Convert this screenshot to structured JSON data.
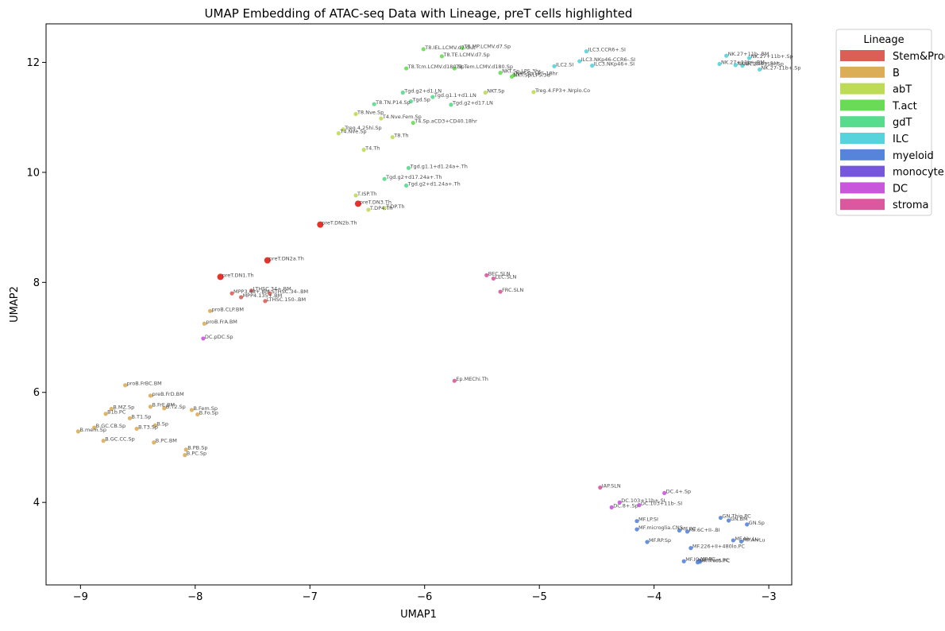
{
  "chart_data": {
    "type": "scatter",
    "title": "UMAP Embedding of ATAC-seq Data with Lineage, preT cells highlighted",
    "xlabel": "UMAP1",
    "ylabel": "UMAP2",
    "xlim": [
      -9.3,
      -2.8
    ],
    "ylim": [
      2.5,
      12.7
    ],
    "xticks": [
      -9,
      -8,
      -7,
      -6,
      -5,
      -4,
      -3
    ],
    "yticks": [
      4,
      6,
      8,
      10,
      12
    ],
    "tick_labels_x": [
      "−9",
      "−8",
      "−7",
      "−6",
      "−5",
      "−4",
      "−3"
    ],
    "tick_labels_y": [
      "4",
      "6",
      "8",
      "10",
      "12"
    ],
    "grid": false,
    "legend": {
      "title": "Lineage",
      "placement": "outside-right-top",
      "entries": [
        {
          "name": "Stem&Prog",
          "color": "#db5f57"
        },
        {
          "name": "B",
          "color": "#dbad57"
        },
        {
          "name": "abT",
          "color": "#bddb57"
        },
        {
          "name": "T.act",
          "color": "#6adb57"
        },
        {
          "name": "gdT",
          "color": "#57db8c"
        },
        {
          "name": "ILC",
          "color": "#57d3db"
        },
        {
          "name": "myeloid",
          "color": "#5784db"
        },
        {
          "name": "monocyte",
          "color": "#7657db"
        },
        {
          "name": "DC",
          "color": "#c957db"
        },
        {
          "name": "stroma",
          "color": "#db579e"
        }
      ]
    },
    "highlight_color": "#e8312b",
    "points": [
      {
        "x": -6.58,
        "y": 9.43,
        "label": "preT.DN3.Th",
        "lineage": "Stem&Prog",
        "highlight": true
      },
      {
        "x": -6.91,
        "y": 9.05,
        "label": "preT.DN2b.Th",
        "lineage": "Stem&Prog",
        "highlight": true
      },
      {
        "x": -7.37,
        "y": 8.4,
        "label": "preT.DN2a.Th",
        "lineage": "Stem&Prog",
        "highlight": true
      },
      {
        "x": -7.78,
        "y": 8.1,
        "label": "preT.DN1.Th",
        "lineage": "Stem&Prog",
        "highlight": true
      },
      {
        "x": -7.51,
        "y": 7.85,
        "label": "LTHSC.34+.BM",
        "lineage": "Stem&Prog"
      },
      {
        "x": -7.35,
        "y": 7.8,
        "label": "STHSC.34-.BM",
        "lineage": "Stem&Prog"
      },
      {
        "x": -7.68,
        "y": 7.8,
        "label": "MPP3.48+.BM",
        "lineage": "Stem&Prog"
      },
      {
        "x": -7.6,
        "y": 7.73,
        "label": "MPP4.135+.BM",
        "lineage": "Stem&Prog"
      },
      {
        "x": -7.39,
        "y": 7.66,
        "label": "LTHSC.150-.BM",
        "lineage": "Stem&Prog"
      },
      {
        "x": -7.87,
        "y": 7.48,
        "label": "proB.CLP.BM",
        "lineage": "B"
      },
      {
        "x": -7.92,
        "y": 7.25,
        "label": "proB.FrA.BM",
        "lineage": "B"
      },
      {
        "x": -8.61,
        "y": 6.13,
        "label": "proB.FrBC.BM",
        "lineage": "B"
      },
      {
        "x": -8.39,
        "y": 5.94,
        "label": "preB.FrD.BM",
        "lineage": "B"
      },
      {
        "x": -8.39,
        "y": 5.74,
        "label": "B.FrE.BM",
        "lineage": "B"
      },
      {
        "x": -8.27,
        "y": 5.71,
        "label": "B.T2.Sp",
        "lineage": "B"
      },
      {
        "x": -8.73,
        "y": 5.7,
        "label": "B.MZ.Sp",
        "lineage": "B"
      },
      {
        "x": -8.03,
        "y": 5.68,
        "label": "B.Fem.Sp",
        "lineage": "B"
      },
      {
        "x": -7.98,
        "y": 5.6,
        "label": "B.Fo.Sp",
        "lineage": "B"
      },
      {
        "x": -8.78,
        "y": 5.61,
        "label": "B1b.PC",
        "lineage": "B"
      },
      {
        "x": -8.57,
        "y": 5.53,
        "label": "B.T1.Sp",
        "lineage": "B"
      },
      {
        "x": -8.35,
        "y": 5.4,
        "label": "B.Sp",
        "lineage": "B"
      },
      {
        "x": -8.88,
        "y": 5.36,
        "label": "B.GC.CB.Sp",
        "lineage": "B"
      },
      {
        "x": -8.51,
        "y": 5.34,
        "label": "B.T3.Sp",
        "lineage": "B"
      },
      {
        "x": -9.02,
        "y": 5.29,
        "label": "B.mem.Sp",
        "lineage": "B"
      },
      {
        "x": -8.8,
        "y": 5.12,
        "label": "B.GC.CC.Sp",
        "lineage": "B"
      },
      {
        "x": -8.36,
        "y": 5.09,
        "label": "B.PC.BM",
        "lineage": "B"
      },
      {
        "x": -8.08,
        "y": 4.96,
        "label": "B.PB.Sp",
        "lineage": "B"
      },
      {
        "x": -8.09,
        "y": 4.86,
        "label": "B.PC.Sp",
        "lineage": "B"
      },
      {
        "x": -5.67,
        "y": 12.26,
        "label": "T8.MP.LCMV.d7.Sp",
        "lineage": "T.act"
      },
      {
        "x": -6.01,
        "y": 12.24,
        "label": "T8.IEL.LCMV.d7.Gut",
        "lineage": "T.act"
      },
      {
        "x": -5.85,
        "y": 12.11,
        "label": "T8.TE.LCMV.d7.Sp",
        "lineage": "T.act"
      },
      {
        "x": -6.16,
        "y": 11.89,
        "label": "T8.Tcm.LCMV.d180.Sp",
        "lineage": "T.act"
      },
      {
        "x": -5.74,
        "y": 11.89,
        "label": "T8.Tem.LCMV.d180.Sp",
        "lineage": "T.act"
      },
      {
        "x": -5.34,
        "y": 11.81,
        "label": "NKT.Sp.LPS.3hr",
        "lineage": "T.act"
      },
      {
        "x": -5.22,
        "y": 11.77,
        "label": "NKT.Sp.LPS.18hr",
        "lineage": "T.act"
      },
      {
        "x": -5.24,
        "y": 11.74,
        "label": "NKT.Sp.LPS.3d",
        "lineage": "T.act"
      },
      {
        "x": -6.1,
        "y": 10.9,
        "label": "T4.Sp.aCD3+CD40.18hr",
        "lineage": "T.act"
      },
      {
        "x": -5.47,
        "y": 11.45,
        "label": "NKT.Sp",
        "lineage": "abT"
      },
      {
        "x": -5.05,
        "y": 11.46,
        "label": "Treg.4.FP3+.Nrplo.Co",
        "lineage": "abT"
      },
      {
        "x": -6.6,
        "y": 11.06,
        "label": "T8.Nve.Sp",
        "lineage": "abT"
      },
      {
        "x": -6.38,
        "y": 10.98,
        "label": "T4.Nve.Fem.Sp",
        "lineage": "abT"
      },
      {
        "x": -6.71,
        "y": 10.78,
        "label": "Treg.4.25hi.Sp",
        "lineage": "abT"
      },
      {
        "x": -6.75,
        "y": 10.71,
        "label": "T4.Nve.Sp",
        "lineage": "abT"
      },
      {
        "x": -6.28,
        "y": 10.64,
        "label": "T8.Th",
        "lineage": "abT"
      },
      {
        "x": -6.53,
        "y": 10.41,
        "label": "T4.Th",
        "lineage": "abT"
      },
      {
        "x": -6.6,
        "y": 9.58,
        "label": "T.ISP.Th",
        "lineage": "abT"
      },
      {
        "x": -6.35,
        "y": 9.35,
        "label": "T.DP.Th",
        "lineage": "abT"
      },
      {
        "x": -6.49,
        "y": 9.32,
        "label": "T.DP4.Th",
        "lineage": "abT"
      },
      {
        "x": -6.19,
        "y": 11.45,
        "label": "Tgd.g2+d1.LN",
        "lineage": "gdT"
      },
      {
        "x": -5.93,
        "y": 11.37,
        "label": "Tgd.g1.1+d1.LN",
        "lineage": "gdT"
      },
      {
        "x": -6.12,
        "y": 11.29,
        "label": "Tgd.Sp",
        "lineage": "gdT"
      },
      {
        "x": -6.44,
        "y": 11.24,
        "label": "T8.TN.P14.Sp",
        "lineage": "gdT"
      },
      {
        "x": -5.77,
        "y": 11.23,
        "label": "Tgd.g2+d17.LN",
        "lineage": "gdT"
      },
      {
        "x": -6.14,
        "y": 10.08,
        "label": "Tgd.g1.1+d1.24a+.Th",
        "lineage": "gdT"
      },
      {
        "x": -6.35,
        "y": 9.88,
        "label": "Tgd.g2+d17.24a+.Th",
        "lineage": "gdT"
      },
      {
        "x": -6.16,
        "y": 9.76,
        "label": "Tgd.g2+d1.24a+.Th",
        "lineage": "gdT"
      },
      {
        "x": -4.59,
        "y": 12.2,
        "label": "ILC3.CCR6+.SI",
        "lineage": "ILC"
      },
      {
        "x": -3.37,
        "y": 12.12,
        "label": "NK.27+11b-.BM",
        "lineage": "ILC"
      },
      {
        "x": -3.17,
        "y": 12.08,
        "label": "NK.27+11b+.Sp",
        "lineage": "ILC"
      },
      {
        "x": -4.65,
        "y": 12.02,
        "label": "ILC3.NKp46-CCR6-.SI",
        "lineage": "ILC"
      },
      {
        "x": -4.87,
        "y": 11.93,
        "label": "ILC2.SI",
        "lineage": "ILC"
      },
      {
        "x": -4.54,
        "y": 11.94,
        "label": "ILC3.NKp46+.SI",
        "lineage": "ILC"
      },
      {
        "x": -3.43,
        "y": 11.97,
        "label": "NK.27+11b+.BM",
        "lineage": "ILC"
      },
      {
        "x": -3.29,
        "y": 11.95,
        "label": "NK.27-11b+.BM",
        "lineage": "ILC"
      },
      {
        "x": -3.23,
        "y": 11.94,
        "label": "NK.27+11b-.Sp",
        "lineage": "ILC"
      },
      {
        "x": -3.08,
        "y": 11.87,
        "label": "NK.27-11b+.Sp",
        "lineage": "ILC"
      },
      {
        "x": -3.42,
        "y": 3.72,
        "label": "GN.Thio.PC",
        "lineage": "myeloid"
      },
      {
        "x": -3.35,
        "y": 3.67,
        "label": "GN.BM",
        "lineage": "myeloid"
      },
      {
        "x": -3.19,
        "y": 3.6,
        "label": "GN.Sp",
        "lineage": "myeloid"
      },
      {
        "x": -4.15,
        "y": 3.66,
        "label": "MF.LP.SI",
        "lineage": "myeloid"
      },
      {
        "x": -4.15,
        "y": 3.51,
        "label": "MF.microglia.CNS",
        "lineage": "myeloid"
      },
      {
        "x": -3.78,
        "y": 3.49,
        "label": "MF.PC",
        "lineage": "myeloid"
      },
      {
        "x": -3.71,
        "y": 3.47,
        "label": "MF.6C+II-.BI",
        "lineage": "myeloid"
      },
      {
        "x": -4.06,
        "y": 3.28,
        "label": "MF.RP.Sp",
        "lineage": "myeloid"
      },
      {
        "x": -3.31,
        "y": 3.31,
        "label": "MF.Alv.Lu",
        "lineage": "myeloid"
      },
      {
        "x": -3.24,
        "y": 3.29,
        "label": "MF.AlvLu",
        "lineage": "myeloid"
      },
      {
        "x": -3.68,
        "y": 3.17,
        "label": "MF.226+II+480lo.PC",
        "lineage": "myeloid"
      },
      {
        "x": -3.74,
        "y": 2.93,
        "label": "MF.IO",
        "lineage": "myeloid"
      },
      {
        "x": -3.61,
        "y": 2.94,
        "label": "MF.PC",
        "lineage": "myeloid"
      },
      {
        "x": -3.6,
        "y": 2.92,
        "label": "MF.Fem.PC",
        "lineage": "myeloid"
      },
      {
        "x": -3.62,
        "y": 2.91,
        "label": "MF.Thio5.PC",
        "lineage": "myeloid"
      },
      {
        "x": -7.93,
        "y": 6.98,
        "label": "DC.pDC.Sp",
        "lineage": "DC"
      },
      {
        "x": -3.91,
        "y": 4.17,
        "label": "DC.4+.Sp",
        "lineage": "DC"
      },
      {
        "x": -4.3,
        "y": 4.0,
        "label": "DC.103+11b+.SI",
        "lineage": "DC"
      },
      {
        "x": -4.37,
        "y": 3.91,
        "label": "DC.8+.Sp",
        "lineage": "DC"
      },
      {
        "x": -4.13,
        "y": 3.95,
        "label": "DC.103+11b-.SI",
        "lineage": "DC"
      },
      {
        "x": -5.46,
        "y": 8.13,
        "label": "BEC.SLN",
        "lineage": "stroma"
      },
      {
        "x": -5.4,
        "y": 8.07,
        "label": "LEC.SLN",
        "lineage": "stroma"
      },
      {
        "x": -5.34,
        "y": 7.83,
        "label": "FRC.SLN",
        "lineage": "stroma"
      },
      {
        "x": -5.74,
        "y": 6.21,
        "label": "Ep.MEChi.Th",
        "lineage": "stroma"
      },
      {
        "x": -4.47,
        "y": 4.27,
        "label": "IAP.SLN",
        "lineage": "stroma"
      }
    ]
  }
}
